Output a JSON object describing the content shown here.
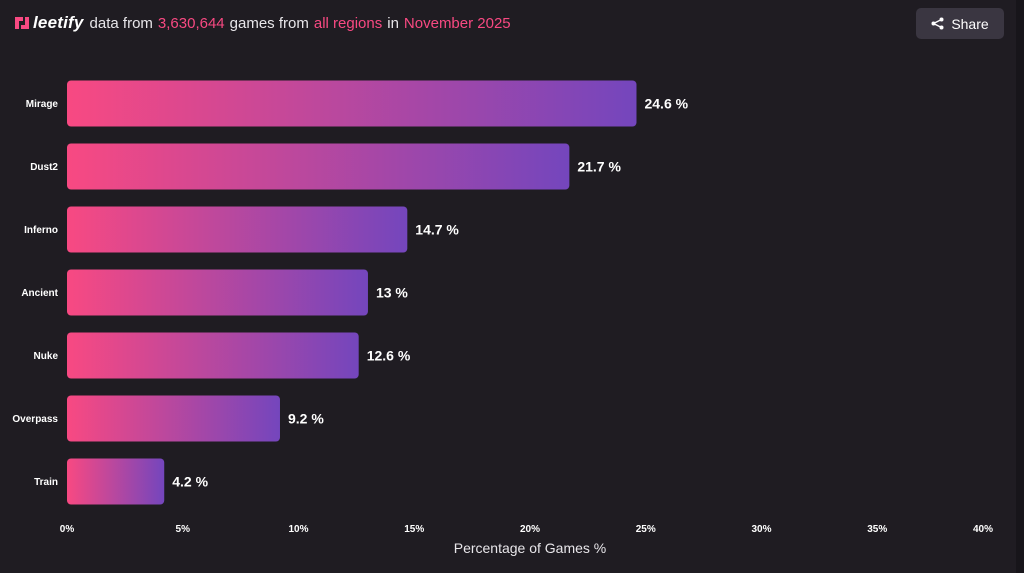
{
  "header": {
    "logo_text": "leetify",
    "t1": "data from",
    "games_count": "3,630,644",
    "t2": "games from",
    "regions": "all regions",
    "t3": "in",
    "period": "November 2025"
  },
  "share_button": {
    "label": "Share",
    "icon": "share-icon"
  },
  "colors": {
    "accent": "#f84982",
    "bar_start": "#f84982",
    "bar_end": "#7446bd",
    "background": "#1f1c22",
    "button_bg": "#3a3641"
  },
  "chart_data": {
    "type": "bar",
    "orientation": "horizontal",
    "categories": [
      "Mirage",
      "Dust2",
      "Inferno",
      "Ancient",
      "Nuke",
      "Overpass",
      "Train"
    ],
    "values": [
      24.6,
      21.7,
      14.7,
      13,
      12.6,
      9.2,
      4.2
    ],
    "value_labels": [
      "24.6 %",
      "21.7 %",
      "14.7 %",
      "13 %",
      "12.6 %",
      "9.2 %",
      "4.2 %"
    ],
    "xlim": [
      0,
      40
    ],
    "xticks": [
      0,
      5,
      10,
      15,
      20,
      25,
      30,
      35,
      40
    ],
    "xtick_labels": [
      "0%",
      "5%",
      "10%",
      "15%",
      "20%",
      "25%",
      "30%",
      "35%",
      "40%"
    ],
    "xlabel": "Percentage of Games %",
    "ylabel": "",
    "title": "",
    "grid": false,
    "legend": "none"
  }
}
